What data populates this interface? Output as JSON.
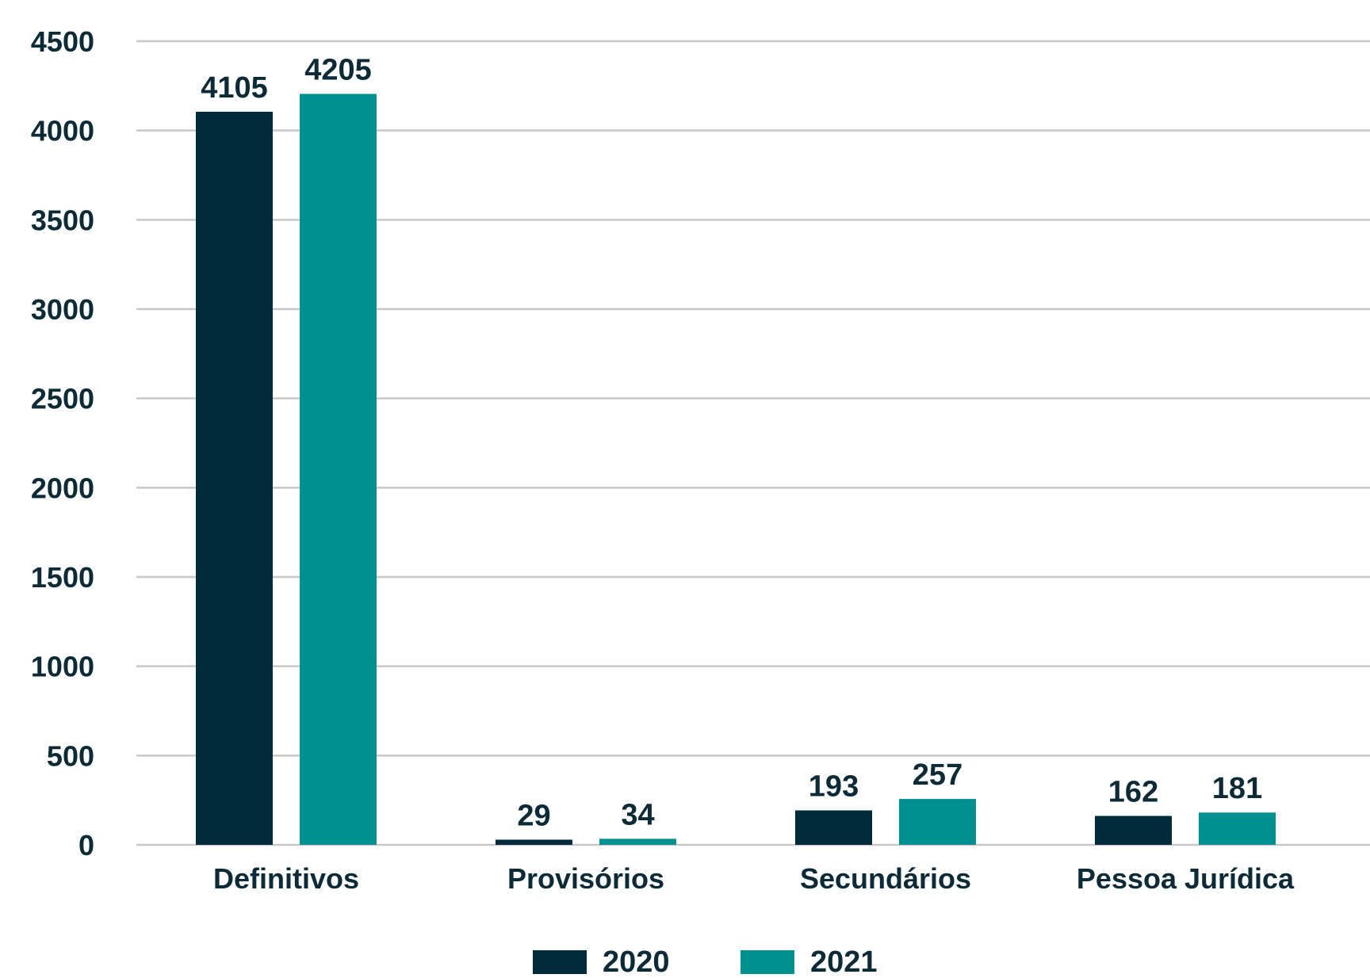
{
  "chart_data": {
    "type": "bar",
    "title": "",
    "xlabel": "",
    "ylabel": "",
    "categories": [
      "Definitivos",
      "Provisórios",
      "Secundários",
      "Pessoa Jurídica"
    ],
    "series": [
      {
        "name": "2020",
        "values": [
          4105,
          29,
          193,
          162
        ],
        "color": "#002b3a"
      },
      {
        "name": "2021",
        "values": [
          4205,
          34,
          257,
          181
        ],
        "color": "#009090"
      }
    ],
    "ylim": [
      0,
      4500
    ],
    "yticks": [
      0,
      500,
      1000,
      1500,
      2000,
      2500,
      3000,
      3500,
      4000,
      4500
    ],
    "ytick_labels": [
      "0",
      "500",
      "1000",
      "1500",
      "2000",
      "2500",
      "3000",
      "3500",
      "4000",
      "4500"
    ],
    "data_labels": [
      [
        "4105",
        "29",
        "193",
        "162"
      ],
      [
        "4205",
        "34",
        "257",
        "181"
      ]
    ],
    "grid": true,
    "legend": "bottom-center",
    "colors": {
      "gridline": "#c8c8c8",
      "text": "#0d2b36"
    }
  }
}
